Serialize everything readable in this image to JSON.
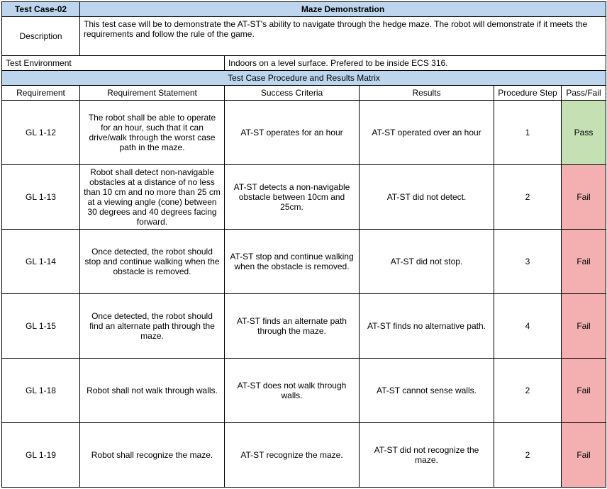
{
  "testCaseId": "Test Case-02",
  "testCaseTitle": "Maze Demonstration",
  "descriptionLabel": "Description",
  "descriptionText": "This test case will be to demonstrate the AT-ST's ability to navigate through the hedge maze. The robot will demonstrate if it meets the requirements and follow the rule of the game.",
  "testEnvLabel": "Test Environment",
  "testEnvValue": "Indoors on a level surface. Prefered to be inside ECS 316.",
  "matrixTitle": "Test Case Procedure and Results Matrix",
  "columns": {
    "requirement": "Requirement",
    "statement": "Requirement Statement",
    "criteria": "Success Criteria",
    "results": "Results",
    "step": "Procedure Step",
    "passfail": "Pass/Fail"
  },
  "rows": [
    {
      "req": "GL 1-12",
      "statement": "The robot shall be able to operate for an hour, such that it can drive/walk through the worst case path in the maze.",
      "criteria": "AT-ST operates for an hour",
      "results": "AT-ST operated over an hour",
      "step": "1",
      "passfail": "Pass",
      "status": "pass"
    },
    {
      "req": "GL 1-13",
      "statement": "Robot shall detect non-navigable obstacles at a distance of no less than 10 cm and no more than 25 cm at a viewing angle (cone) between 30 degrees and 40 degrees facing forward.",
      "criteria": "AT-ST detects a non-navigable obstacle between 10cm and 25cm.",
      "results": "AT-ST did not detect.",
      "step": "2",
      "passfail": "Fail",
      "status": "fail"
    },
    {
      "req": "GL 1-14",
      "statement": "Once detected, the robot should stop and continue walking when the obstacle is removed.",
      "criteria": "AT-ST stop and continue walking when the obstacle is removed.",
      "results": "AT-ST did not stop.",
      "step": "3",
      "passfail": "Fail",
      "status": "fail"
    },
    {
      "req": "GL 1-15",
      "statement": "Once detected, the robot should find an alternate path through the maze.",
      "criteria": "AT-ST finds an alternate path through the maze.",
      "results": "AT-ST finds no alternative path.",
      "step": "4",
      "passfail": "Fail",
      "status": "fail"
    },
    {
      "req": "GL 1-18",
      "statement": "Robot shall not walk through walls.",
      "criteria": "AT-ST does not walk through walls.",
      "results": "AT-ST cannot sense walls.",
      "step": "2",
      "passfail": "Fail",
      "status": "fail"
    },
    {
      "req": "GL 1-19",
      "statement": "Robot shall recognize the maze.",
      "criteria": "AT-ST recognize the maze.",
      "results": "AT-ST did not recognize the maze.",
      "step": "2",
      "passfail": "Fail",
      "status": "fail"
    }
  ],
  "colors": {
    "headerBlue": "#bdd6ee",
    "passGreen": "#c5e0b3",
    "failRed": "#f4b0b0",
    "border": "#000000",
    "background": "#ffffff"
  }
}
